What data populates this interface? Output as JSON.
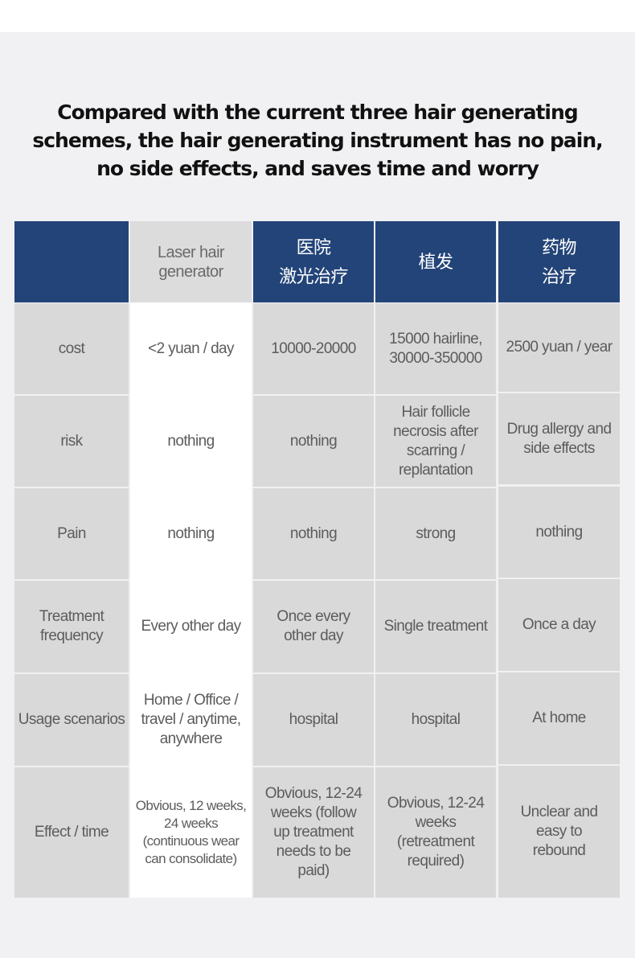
{
  "headline": "Compared with the current three hair generating schemes, the hair generating instrument has no pain, no side effects, and saves time and worry",
  "table": {
    "headers": [
      "",
      "Laser hair\ngenerator",
      "医院\n激光治疗",
      "植发",
      "药物\n治疗"
    ],
    "rows": [
      [
        "cost",
        "<2 yuan / day",
        "10000-20000",
        "15000 hairline,\n30000-350000",
        "2500 yuan / year"
      ],
      [
        "risk",
        "nothing",
        "nothing",
        "Hair follicle\nnecrosis after\nscarring /\nreplantation",
        "Drug allergy and\nside effects"
      ],
      [
        "Pain",
        "nothing",
        "nothing",
        "strong",
        "nothing"
      ],
      [
        "Treatment\nfrequency",
        "Every other day",
        "Once every\nother day",
        "Single treatment",
        "Once a day"
      ],
      [
        "Usage scenarios",
        "Home / Office /\ntravel / anytime,\nanywhere",
        "hospital",
        "hospital",
        "At home"
      ],
      [
        "Effect / time",
        "Obvious, 12 weeks,\n24 weeks\n(continuous wear\ncan consolidate)",
        "Obvious, 12-24\nweeks (follow\nup treatment\nneeds to be\npaid)",
        "Obvious, 12-24\nweeks\n(retreatment\nrequired)",
        "Unclear and\neasy to\nrebound"
      ]
    ]
  },
  "colors": {
    "header_blue": "#234478",
    "cell_gray": "#d9d9d9",
    "highlight_white": "#ffffff"
  }
}
